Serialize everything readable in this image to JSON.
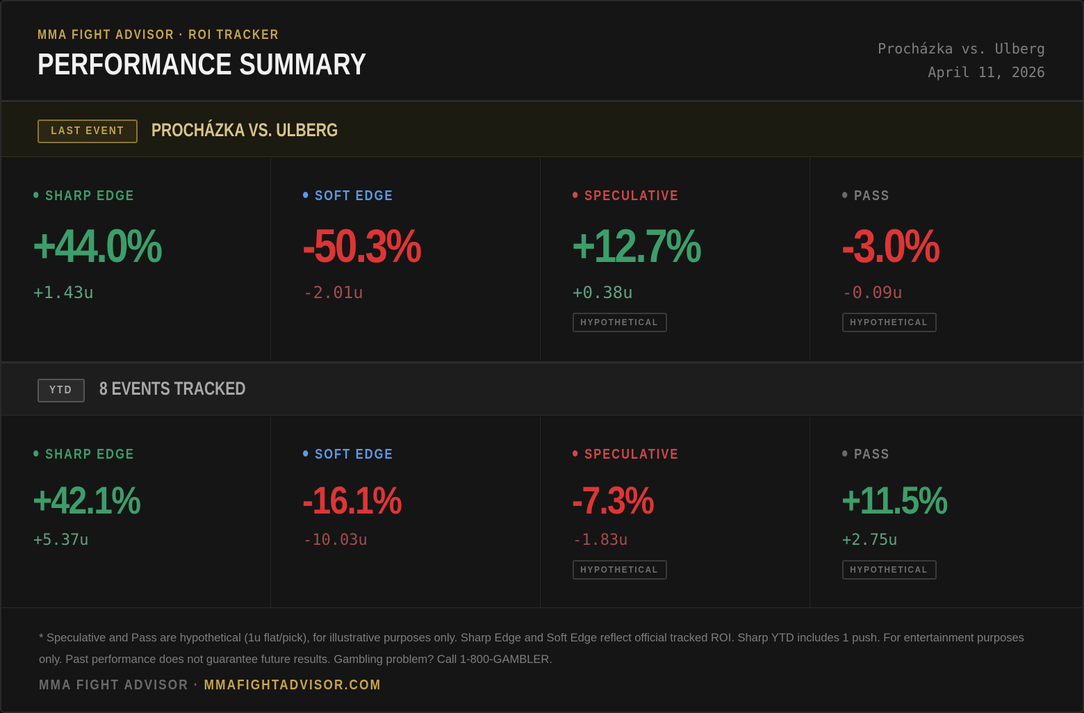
{
  "header": {
    "kicker": "MMA FIGHT ADVISOR · ROI TRACKER",
    "title": "PERFORMANCE SUMMARY",
    "event_name": "Procházka vs. Ulberg",
    "event_date": "April 11, 2026"
  },
  "colors": {
    "gold": "#c8a44a",
    "positive": "#3c9e6a",
    "negative": "#de3535",
    "sharp": "#3c9e6a",
    "soft": "#5b9be8",
    "speculative": "#d04848",
    "pass": "#7a7a7a"
  },
  "last_event": {
    "tag": "LAST EVENT",
    "label": "PROCHÁZKA VS. ULBERG",
    "cells": [
      {
        "category": "SHARP EDGE",
        "roi": "+44.0%",
        "units": "+1.43u",
        "hypothetical": false
      },
      {
        "category": "SOFT EDGE",
        "roi": "-50.3%",
        "units": "-2.01u",
        "hypothetical": false
      },
      {
        "category": "SPECULATIVE",
        "roi": "+12.7%",
        "units": "+0.38u",
        "hypothetical": true
      },
      {
        "category": "PASS",
        "roi": "-3.0%",
        "units": "-0.09u",
        "hypothetical": true
      }
    ]
  },
  "ytd": {
    "tag": "YTD",
    "label": "8 EVENTS TRACKED",
    "cells": [
      {
        "category": "SHARP EDGE",
        "roi": "+42.1%",
        "units": "+5.37u",
        "hypothetical": false
      },
      {
        "category": "SOFT EDGE",
        "roi": "-16.1%",
        "units": "-10.03u",
        "hypothetical": false
      },
      {
        "category": "SPECULATIVE",
        "roi": "-7.3%",
        "units": "-1.83u",
        "hypothetical": true
      },
      {
        "category": "PASS",
        "roi": "+11.5%",
        "units": "+2.75u",
        "hypothetical": true
      }
    ]
  },
  "hypothetical_label": "HYPOTHETICAL",
  "footer": {
    "disclaimer": "* Speculative and Pass are hypothetical (1u flat/pick), for illustrative purposes only. Sharp Edge and Soft Edge reflect official tracked ROI. Sharp YTD includes 1 push. For entertainment purposes only. Past performance does not guarantee future results. Gambling problem? Call 1-800-GAMBLER.",
    "brand": "MMA FIGHT ADVISOR ·",
    "site": "MMAFIGHTADVISOR.COM"
  }
}
